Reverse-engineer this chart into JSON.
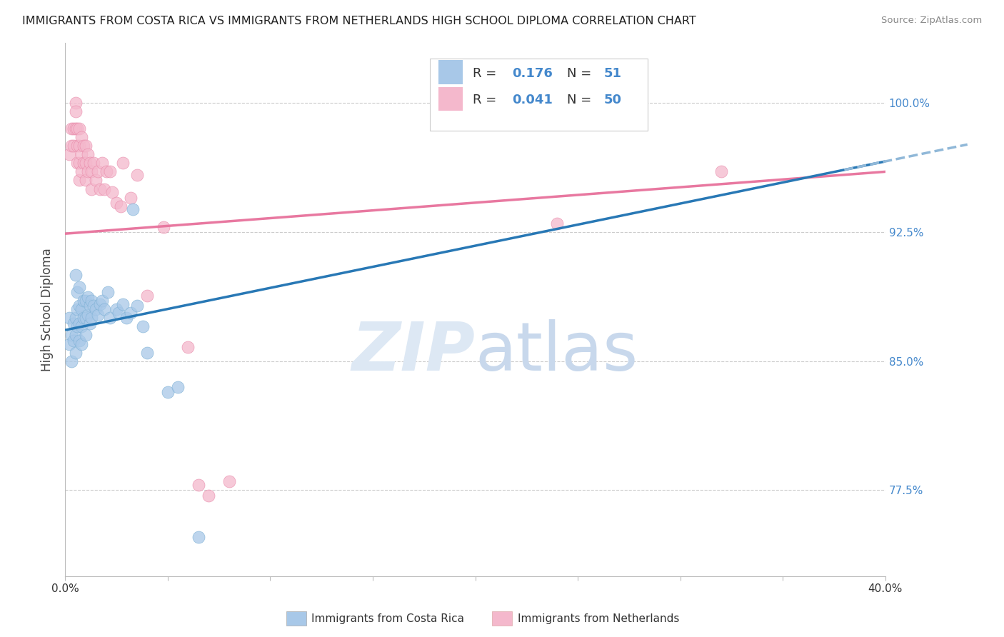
{
  "title": "IMMIGRANTS FROM COSTA RICA VS IMMIGRANTS FROM NETHERLANDS HIGH SCHOOL DIPLOMA CORRELATION CHART",
  "source": "Source: ZipAtlas.com",
  "ylabel": "High School Diploma",
  "y_right_labels": [
    "77.5%",
    "85.0%",
    "92.5%",
    "100.0%"
  ],
  "legend_r1_val": "0.176",
  "legend_n1_val": "51",
  "legend_r2_val": "0.041",
  "legend_n2_val": "50",
  "blue_color": "#a8c8e8",
  "blue_color_edge": "#7bafd4",
  "pink_color": "#f4b8cc",
  "pink_color_edge": "#e888a8",
  "blue_line_color": "#2878b5",
  "pink_line_color": "#e878a0",
  "dashed_line_color": "#90b8d8",
  "watermark_color": "#dde8f4",
  "right_tick_color": "#4488cc",
  "title_color": "#222222",
  "xlim": [
    0.0,
    0.4
  ],
  "ylim": [
    0.725,
    1.035
  ],
  "y_ticks": [
    0.775,
    0.85,
    0.925,
    1.0
  ],
  "costa_rica_x": [
    0.002,
    0.002,
    0.003,
    0.003,
    0.004,
    0.004,
    0.005,
    0.005,
    0.005,
    0.005,
    0.006,
    0.006,
    0.006,
    0.007,
    0.007,
    0.007,
    0.007,
    0.008,
    0.008,
    0.008,
    0.009,
    0.009,
    0.01,
    0.01,
    0.01,
    0.011,
    0.011,
    0.012,
    0.012,
    0.013,
    0.013,
    0.014,
    0.015,
    0.016,
    0.017,
    0.018,
    0.019,
    0.021,
    0.022,
    0.025,
    0.026,
    0.028,
    0.03,
    0.032,
    0.033,
    0.035,
    0.038,
    0.04,
    0.05,
    0.055,
    0.065
  ],
  "costa_rica_y": [
    0.875,
    0.86,
    0.865,
    0.85,
    0.872,
    0.862,
    0.875,
    0.865,
    0.855,
    0.9,
    0.88,
    0.87,
    0.89,
    0.893,
    0.882,
    0.872,
    0.862,
    0.88,
    0.87,
    0.86,
    0.885,
    0.875,
    0.885,
    0.875,
    0.865,
    0.887,
    0.877,
    0.882,
    0.872,
    0.885,
    0.875,
    0.882,
    0.88,
    0.877,
    0.883,
    0.885,
    0.88,
    0.89,
    0.875,
    0.88,
    0.878,
    0.883,
    0.875,
    0.878,
    0.938,
    0.882,
    0.87,
    0.855,
    0.832,
    0.835,
    0.748
  ],
  "netherlands_x": [
    0.002,
    0.003,
    0.003,
    0.004,
    0.004,
    0.005,
    0.005,
    0.005,
    0.006,
    0.006,
    0.006,
    0.007,
    0.007,
    0.007,
    0.007,
    0.008,
    0.008,
    0.008,
    0.009,
    0.009,
    0.01,
    0.01,
    0.01,
    0.011,
    0.011,
    0.012,
    0.013,
    0.013,
    0.014,
    0.015,
    0.016,
    0.017,
    0.018,
    0.019,
    0.02,
    0.022,
    0.023,
    0.025,
    0.027,
    0.028,
    0.032,
    0.035,
    0.04,
    0.048,
    0.06,
    0.065,
    0.07,
    0.08,
    0.24,
    0.32
  ],
  "netherlands_y": [
    0.97,
    0.985,
    0.975,
    0.985,
    0.975,
    1.0,
    0.995,
    0.985,
    0.985,
    0.975,
    0.965,
    0.985,
    0.975,
    0.965,
    0.955,
    0.98,
    0.97,
    0.96,
    0.975,
    0.965,
    0.975,
    0.965,
    0.955,
    0.97,
    0.96,
    0.965,
    0.96,
    0.95,
    0.965,
    0.955,
    0.96,
    0.95,
    0.965,
    0.95,
    0.96,
    0.96,
    0.948,
    0.942,
    0.94,
    0.965,
    0.945,
    0.958,
    0.888,
    0.928,
    0.858,
    0.778,
    0.772,
    0.78,
    0.93,
    0.96
  ],
  "cr_line_x0": 0.0,
  "cr_line_y0": 0.868,
  "cr_line_x1": 0.4,
  "cr_line_y1": 0.966,
  "nl_line_x0": 0.0,
  "nl_line_y0": 0.924,
  "nl_line_x1": 0.4,
  "nl_line_y1": 0.96
}
